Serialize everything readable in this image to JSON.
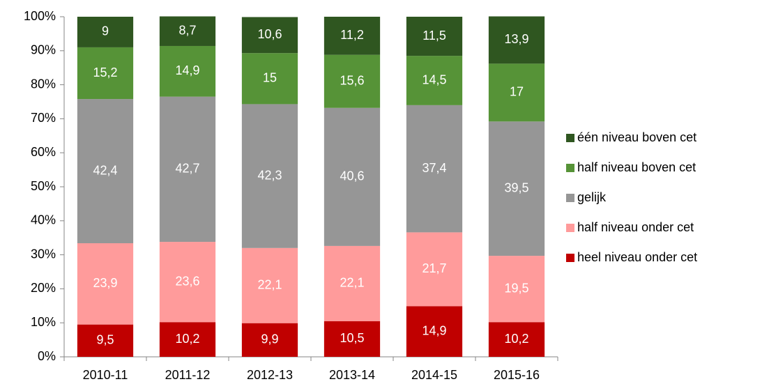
{
  "chart_data": {
    "type": "stacked-bar-100",
    "categories": [
      "2010-11",
      "2011-12",
      "2012-13",
      "2013-14",
      "2014-15",
      "2015-16"
    ],
    "series": [
      {
        "name": "heel niveau onder cet",
        "color": "#c00000",
        "values": [
          9.5,
          10.2,
          9.9,
          10.5,
          14.9,
          10.2
        ],
        "value_labels": [
          "9,5",
          "10,2",
          "9,9",
          "10,5",
          "14,9",
          "10,2"
        ]
      },
      {
        "name": "half niveau onder cet",
        "color": "#ff9b9b",
        "values": [
          23.9,
          23.6,
          22.1,
          22.1,
          21.7,
          19.5
        ],
        "value_labels": [
          "23,9",
          "23,6",
          "22,1",
          "22,1",
          "21,7",
          "19,5"
        ]
      },
      {
        "name": "gelijk",
        "color": "#969696",
        "values": [
          42.4,
          42.7,
          42.3,
          40.6,
          37.4,
          39.5
        ],
        "value_labels": [
          "42,4",
          "42,7",
          "42,3",
          "40,6",
          "37,4",
          "39,5"
        ]
      },
      {
        "name": "half niveau boven cet",
        "color": "#569337",
        "values": [
          15.2,
          14.9,
          15,
          15.6,
          14.5,
          17
        ],
        "value_labels": [
          "15,2",
          "14,9",
          "15",
          "15,6",
          "14,5",
          "17"
        ]
      },
      {
        "name": "één niveau boven cet",
        "color": "#2f5620",
        "values": [
          9,
          8.7,
          10.6,
          11.2,
          11.5,
          13.9
        ],
        "value_labels": [
          "9",
          "8,7",
          "10,6",
          "11,2",
          "11,5",
          "13,9"
        ]
      }
    ],
    "ylim": [
      0,
      100
    ],
    "yticks": [
      {
        "value": 0,
        "label": "0%"
      },
      {
        "value": 10,
        "label": "10%"
      },
      {
        "value": 20,
        "label": "20%"
      },
      {
        "value": 30,
        "label": "30%"
      },
      {
        "value": 40,
        "label": "40%"
      },
      {
        "value": 50,
        "label": "50%"
      },
      {
        "value": 60,
        "label": "60%"
      },
      {
        "value": 70,
        "label": "70%"
      },
      {
        "value": 80,
        "label": "80%"
      },
      {
        "value": 90,
        "label": "90%"
      },
      {
        "value": 100,
        "label": "100%"
      }
    ],
    "grid": false,
    "legend": "right"
  }
}
